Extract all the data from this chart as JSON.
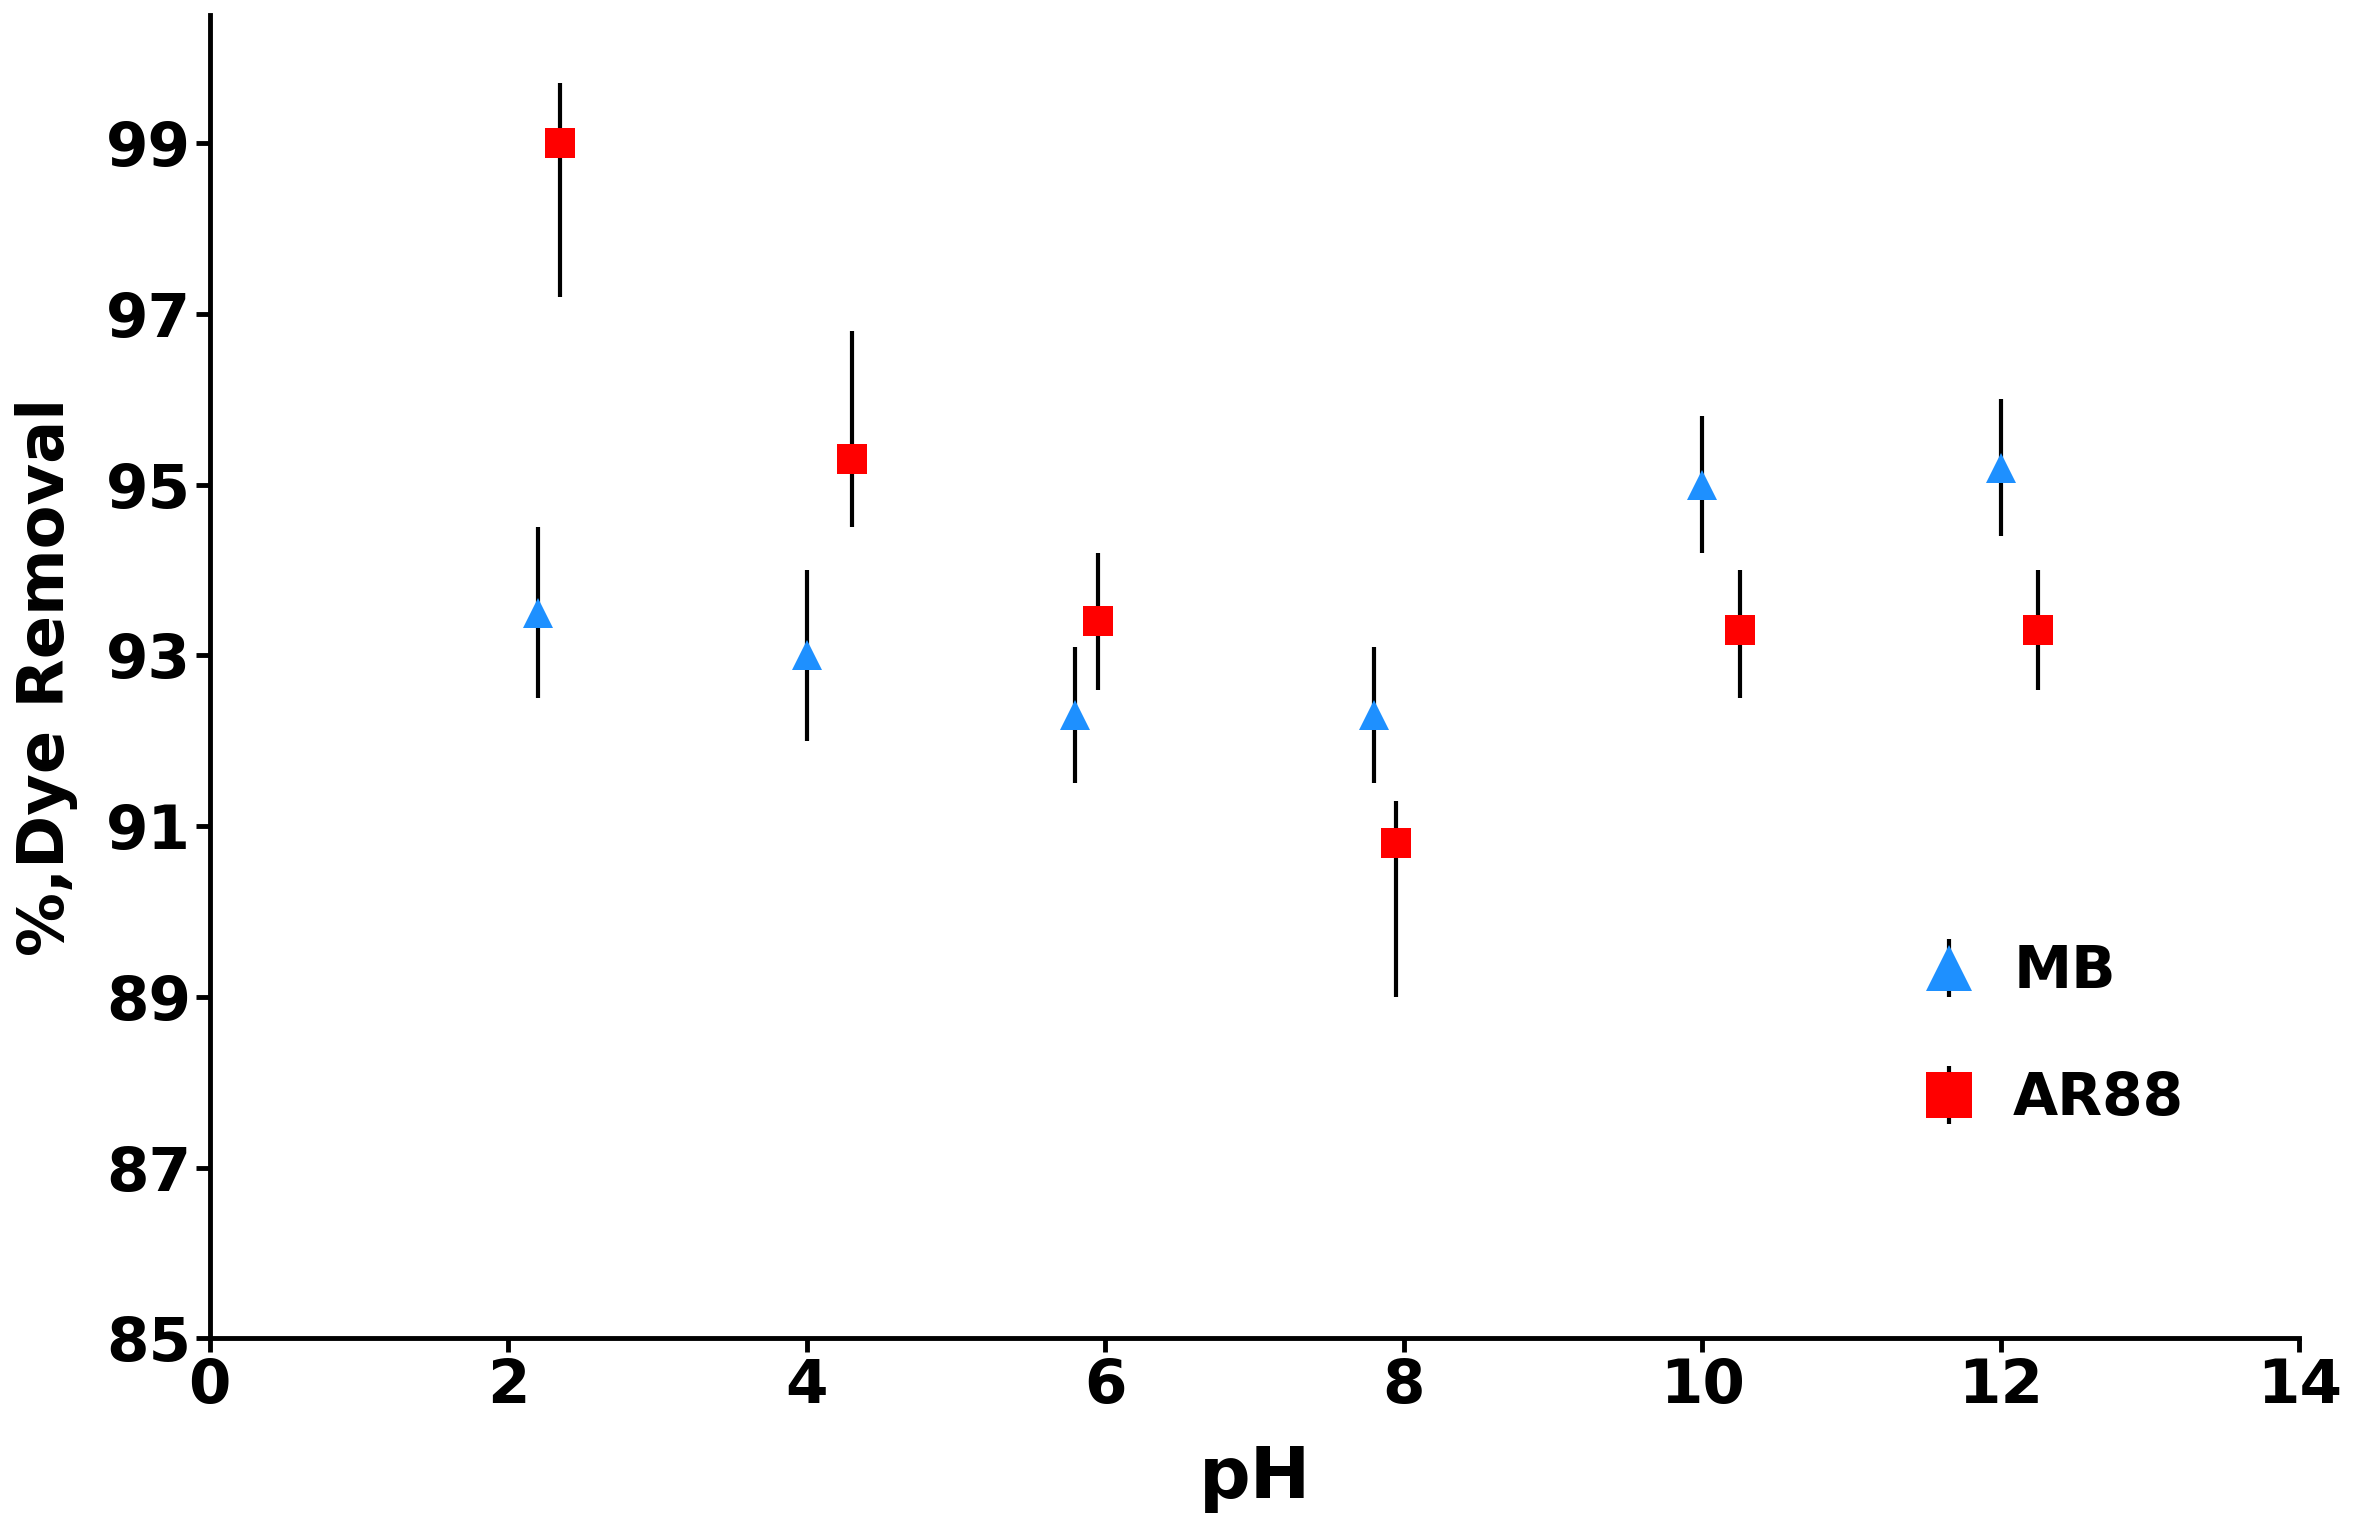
{
  "mb_x": [
    2.2,
    4.0,
    5.8,
    7.8,
    10.0,
    12.0
  ],
  "mb_y": [
    93.5,
    93.0,
    92.3,
    92.3,
    95.0,
    95.2
  ],
  "mb_yerr": [
    1.0,
    1.0,
    0.8,
    0.8,
    0.8,
    0.8
  ],
  "ar88_x": [
    2.35,
    4.3,
    5.95,
    7.95,
    10.25,
    12.25
  ],
  "ar88_y": [
    99.0,
    95.3,
    93.4,
    90.8,
    93.3,
    93.3
  ],
  "ar88_yerr_upper": [
    0.7,
    1.5,
    0.8,
    0.5,
    0.7,
    0.7
  ],
  "ar88_yerr_lower": [
    1.8,
    0.8,
    0.8,
    1.8,
    0.8,
    0.7
  ],
  "mb_color": "#1E90FF",
  "ar88_color": "#FF0000",
  "xlabel": "pH",
  "ylabel": "%,Dye Removal",
  "xlim": [
    0,
    14
  ],
  "ylim": [
    85,
    100.5
  ],
  "yticks": [
    85,
    87,
    89,
    91,
    93,
    95,
    97,
    99
  ],
  "xticks": [
    0,
    2,
    4,
    6,
    8,
    10,
    12,
    14
  ],
  "legend_mb": "MB",
  "legend_ar88": "AR88",
  "background_color": "#ffffff",
  "figwidth": 23.57,
  "figheight": 15.28,
  "dpi": 100
}
